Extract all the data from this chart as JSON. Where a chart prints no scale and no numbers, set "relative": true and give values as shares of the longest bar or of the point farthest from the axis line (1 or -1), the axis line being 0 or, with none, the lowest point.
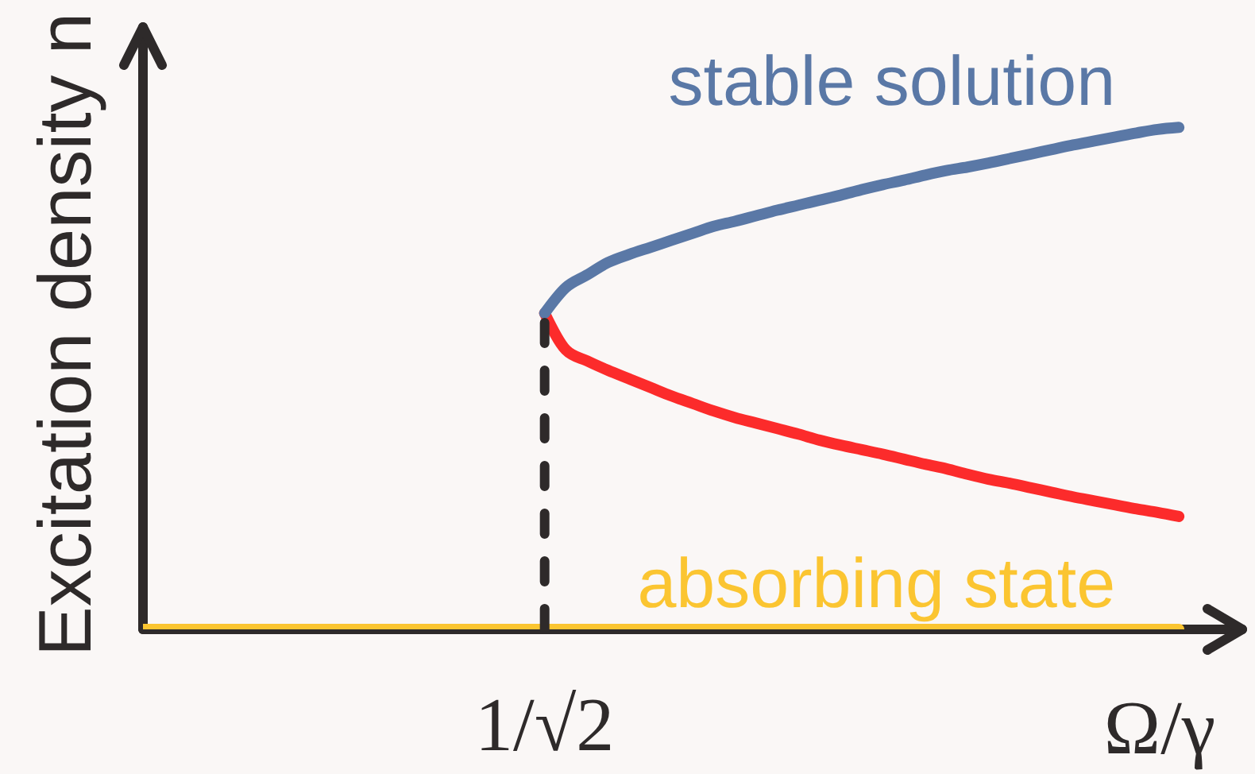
{
  "chart_data": {
    "type": "line",
    "relative": true,
    "marker": "none",
    "xlabel": "Ω/γ",
    "ylabel": "Excitation density n",
    "annotations": [
      "1/√2"
    ],
    "categories": [
      null,
      null,
      null,
      null,
      null,
      null,
      null,
      null,
      null,
      null,
      null,
      null,
      null,
      null,
      null,
      null,
      null,
      null,
      null,
      null,
      null,
      null,
      null,
      null,
      null,
      null,
      null,
      null,
      null,
      null,
      null,
      null,
      null,
      null,
      null,
      null,
      null,
      null,
      null,
      null,
      null,
      null,
      null,
      null,
      null,
      null,
      null,
      null,
      null,
      null,
      null,
      null,
      null
    ],
    "series": [
      {
        "name": "absorbing state",
        "color": "#fbc531",
        "values": [
          0,
          0,
          0,
          0,
          0,
          0,
          0,
          0,
          0,
          0,
          0,
          0,
          0,
          0,
          0,
          0,
          0,
          0,
          0,
          0,
          0,
          0,
          0,
          0,
          0,
          0,
          0,
          0,
          0,
          0,
          0,
          0,
          0,
          0,
          0,
          0,
          0,
          0,
          0,
          0,
          0,
          0,
          0,
          0,
          0,
          0,
          0,
          0,
          0,
          0,
          null,
          null,
          null
        ]
      },
      {
        "color": "#fc2b2b",
        "values": [
          null,
          null,
          null,
          null,
          null,
          null,
          null,
          null,
          null,
          null,
          null,
          null,
          null,
          null,
          null,
          null,
          null,
          null,
          null,
          0.63,
          0.557,
          0.535,
          0.516,
          0.499,
          0.482,
          0.465,
          0.45,
          0.435,
          0.422,
          0.411,
          0.4,
          0.389,
          0.377,
          0.367,
          0.358,
          0.349,
          0.339,
          0.329,
          0.32,
          0.309,
          0.299,
          0.291,
          0.282,
          0.273,
          0.264,
          0.256,
          0.248,
          0.24,
          0.233,
          0.225,
          null,
          null,
          null
        ]
      },
      {
        "name": "stable solution",
        "color": "#5a78a6",
        "values": [
          null,
          null,
          null,
          null,
          null,
          null,
          null,
          null,
          null,
          null,
          null,
          null,
          null,
          null,
          null,
          null,
          null,
          null,
          null,
          0.63,
          0.681,
          0.706,
          0.731,
          0.747,
          0.761,
          0.775,
          0.789,
          0.803,
          0.813,
          0.824,
          0.835,
          0.845,
          0.855,
          0.865,
          0.876,
          0.886,
          0.895,
          0.905,
          0.914,
          0.921,
          0.929,
          0.938,
          0.947,
          0.956,
          0.965,
          0.973,
          0.981,
          0.989,
          0.996,
          1,
          null,
          null,
          null
        ]
      }
    ]
  }
}
